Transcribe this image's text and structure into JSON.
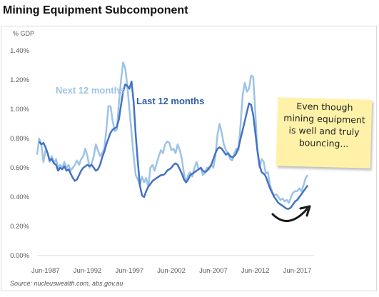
{
  "title": "Mining Equipment Subcomponent",
  "source": "Source: nucleuswealth.com, abs.gov.au",
  "note_lines": [
    "Even though",
    "mining equipment",
    "is well and truly",
    "bouncing..."
  ],
  "colors": {
    "next": "#9dc3e6",
    "last": "#4472c4",
    "last_label": "#2e5fa8",
    "arrow": "#1a1a1a"
  },
  "chart_data": {
    "type": "line",
    "title": "",
    "unit_label": "% GDP",
    "ylim": [
      0,
      1.4
    ],
    "y_ticks": [
      0.0,
      0.2,
      0.4,
      0.6,
      0.8,
      1.0,
      1.2,
      1.4
    ],
    "y_tick_labels": [
      "0.00%",
      "0.20%",
      "0.40%",
      "0.60%",
      "0.80%",
      "1.00%",
      "1.20%",
      "1.40%"
    ],
    "xlim": [
      1986.5,
      2019.5
    ],
    "x_ticks": [
      1987.5,
      1992.5,
      1997.5,
      2002.5,
      2007.5,
      2012.5,
      2017.5
    ],
    "x_tick_labels": [
      "Jun-1987",
      "Jun-1992",
      "Jun-1997",
      "Jun-2002",
      "Jun-2007",
      "Jun-2012",
      "Jun-2017"
    ],
    "grid": false,
    "series": [
      {
        "name": "Next 12 months",
        "points": [
          [
            1986.5,
            0.69
          ],
          [
            1986.75,
            0.8
          ],
          [
            1987,
            0.76
          ],
          [
            1987.25,
            0.64
          ],
          [
            1987.5,
            0.72
          ],
          [
            1987.75,
            0.7
          ],
          [
            1988,
            0.64
          ],
          [
            1988.25,
            0.68
          ],
          [
            1988.5,
            0.63
          ],
          [
            1988.75,
            0.66
          ],
          [
            1989,
            0.6
          ],
          [
            1989.25,
            0.62
          ],
          [
            1989.5,
            0.6
          ],
          [
            1989.75,
            0.64
          ],
          [
            1990,
            0.6
          ],
          [
            1990.25,
            0.62
          ],
          [
            1990.5,
            0.58
          ],
          [
            1990.75,
            0.6
          ],
          [
            1991,
            0.62
          ],
          [
            1991.25,
            0.65
          ],
          [
            1991.5,
            0.62
          ],
          [
            1991.75,
            0.66
          ],
          [
            1992,
            0.68
          ],
          [
            1992.25,
            0.73
          ],
          [
            1992.5,
            0.68
          ],
          [
            1992.75,
            0.6
          ],
          [
            1993,
            0.63
          ],
          [
            1993.25,
            0.68
          ],
          [
            1993.5,
            0.76
          ],
          [
            1993.75,
            0.72
          ],
          [
            1994,
            0.68
          ],
          [
            1994.25,
            0.7
          ],
          [
            1994.5,
            0.73
          ],
          [
            1994.75,
            0.86
          ],
          [
            1995,
            1.02
          ],
          [
            1995.25,
            1.02
          ],
          [
            1995.5,
            0.92
          ],
          [
            1995.75,
            0.85
          ],
          [
            1996,
            0.86
          ],
          [
            1996.25,
            1.04
          ],
          [
            1996.5,
            1.2
          ],
          [
            1996.75,
            1.32
          ],
          [
            1997,
            1.28
          ],
          [
            1997.25,
            1.16
          ],
          [
            1997.5,
            1.0
          ],
          [
            1997.75,
            0.84
          ],
          [
            1998,
            0.68
          ],
          [
            1998.25,
            0.55
          ],
          [
            1998.5,
            0.52
          ],
          [
            1998.75,
            0.48
          ],
          [
            1999,
            0.54
          ],
          [
            1999.25,
            0.5
          ],
          [
            1999.5,
            0.53
          ],
          [
            1999.75,
            0.47
          ],
          [
            2000,
            0.6
          ],
          [
            2000.25,
            0.62
          ],
          [
            2000.5,
            0.58
          ],
          [
            2000.75,
            0.63
          ],
          [
            2001,
            0.68
          ],
          [
            2001.25,
            0.72
          ],
          [
            2001.5,
            0.7
          ],
          [
            2001.75,
            0.76
          ],
          [
            2002,
            0.78
          ],
          [
            2002.25,
            0.77
          ],
          [
            2002.5,
            0.72
          ],
          [
            2002.75,
            0.73
          ],
          [
            2003,
            0.7
          ],
          [
            2003.25,
            0.76
          ],
          [
            2003.5,
            0.72
          ],
          [
            2003.75,
            0.66
          ],
          [
            2004,
            0.56
          ],
          [
            2004.25,
            0.5
          ],
          [
            2004.5,
            0.55
          ],
          [
            2004.75,
            0.57
          ],
          [
            2005,
            0.54
          ],
          [
            2005.25,
            0.6
          ],
          [
            2005.5,
            0.64
          ],
          [
            2005.75,
            0.59
          ],
          [
            2006,
            0.6
          ],
          [
            2006.25,
            0.55
          ],
          [
            2006.5,
            0.57
          ],
          [
            2006.75,
            0.6
          ],
          [
            2007,
            0.59
          ],
          [
            2007.25,
            0.62
          ],
          [
            2007.5,
            0.6
          ],
          [
            2007.75,
            0.68
          ],
          [
            2008,
            0.83
          ],
          [
            2008.25,
            0.9
          ],
          [
            2008.5,
            0.84
          ],
          [
            2008.75,
            0.76
          ],
          [
            2009,
            0.72
          ],
          [
            2009.25,
            0.7
          ],
          [
            2009.5,
            0.66
          ],
          [
            2009.75,
            0.65
          ],
          [
            2010,
            0.7
          ],
          [
            2010.25,
            0.73
          ],
          [
            2010.5,
            0.72
          ],
          [
            2010.75,
            0.9
          ],
          [
            2011,
            1.1
          ],
          [
            2011.25,
            1.18
          ],
          [
            2011.5,
            1.12
          ],
          [
            2011.75,
            1.14
          ],
          [
            2012,
            1.23
          ],
          [
            2012.25,
            1.22
          ],
          [
            2012.5,
            0.98
          ],
          [
            2012.75,
            0.72
          ],
          [
            2013,
            0.6
          ],
          [
            2013.25,
            0.66
          ],
          [
            2013.5,
            0.64
          ],
          [
            2013.75,
            0.56
          ],
          [
            2014,
            0.57
          ],
          [
            2014.25,
            0.48
          ],
          [
            2014.5,
            0.44
          ],
          [
            2014.75,
            0.41
          ],
          [
            2015,
            0.42
          ],
          [
            2015.25,
            0.4
          ],
          [
            2015.5,
            0.38
          ],
          [
            2015.75,
            0.39
          ],
          [
            2016,
            0.37
          ],
          [
            2016.25,
            0.38
          ],
          [
            2016.5,
            0.36
          ],
          [
            2016.75,
            0.4
          ],
          [
            2017,
            0.43
          ],
          [
            2017.25,
            0.44
          ],
          [
            2017.5,
            0.44
          ],
          [
            2017.75,
            0.46
          ],
          [
            2018,
            0.44
          ],
          [
            2018.25,
            0.48
          ],
          [
            2018.5,
            0.53
          ],
          [
            2018.75,
            0.55
          ]
        ]
      },
      {
        "name": "Last 12 months",
        "points": [
          [
            1986.75,
            0.78
          ],
          [
            1987,
            0.76
          ],
          [
            1987.25,
            0.77
          ],
          [
            1987.5,
            0.74
          ],
          [
            1987.75,
            0.7
          ],
          [
            1988,
            0.65
          ],
          [
            1988.25,
            0.66
          ],
          [
            1988.5,
            0.63
          ],
          [
            1988.75,
            0.62
          ],
          [
            1989,
            0.58
          ],
          [
            1989.25,
            0.6
          ],
          [
            1989.5,
            0.59
          ],
          [
            1989.75,
            0.61
          ],
          [
            1990,
            0.58
          ],
          [
            1990.25,
            0.59
          ],
          [
            1990.5,
            0.56
          ],
          [
            1990.75,
            0.53
          ],
          [
            1991,
            0.51
          ],
          [
            1991.25,
            0.52
          ],
          [
            1991.5,
            0.55
          ],
          [
            1991.75,
            0.58
          ],
          [
            1992,
            0.6
          ],
          [
            1992.25,
            0.61
          ],
          [
            1992.5,
            0.62
          ],
          [
            1992.75,
            0.61
          ],
          [
            1993,
            0.62
          ],
          [
            1993.25,
            0.6
          ],
          [
            1993.5,
            0.58
          ],
          [
            1993.75,
            0.59
          ],
          [
            1994,
            0.62
          ],
          [
            1994.25,
            0.67
          ],
          [
            1994.5,
            0.71
          ],
          [
            1994.75,
            0.76
          ],
          [
            1995,
            0.8
          ],
          [
            1995.25,
            0.84
          ],
          [
            1995.5,
            0.86
          ],
          [
            1995.75,
            0.87
          ],
          [
            1996,
            0.88
          ],
          [
            1996.25,
            0.93
          ],
          [
            1996.5,
            1.03
          ],
          [
            1996.75,
            1.12
          ],
          [
            1997,
            1.17
          ],
          [
            1997.25,
            1.16
          ],
          [
            1997.5,
            1.14
          ],
          [
            1997.75,
            1.19
          ],
          [
            1998,
            1.05
          ],
          [
            1998.25,
            0.82
          ],
          [
            1998.5,
            0.64
          ],
          [
            1998.75,
            0.48
          ],
          [
            1999,
            0.41
          ],
          [
            1999.25,
            0.4
          ],
          [
            1999.5,
            0.44
          ],
          [
            1999.75,
            0.47
          ],
          [
            2000,
            0.49
          ],
          [
            2000.25,
            0.51
          ],
          [
            2000.5,
            0.52
          ],
          [
            2000.75,
            0.53
          ],
          [
            2001,
            0.54
          ],
          [
            2001.25,
            0.55
          ],
          [
            2001.5,
            0.55
          ],
          [
            2001.75,
            0.56
          ],
          [
            2002,
            0.58
          ],
          [
            2002.25,
            0.59
          ],
          [
            2002.5,
            0.6
          ],
          [
            2002.75,
            0.62
          ],
          [
            2003,
            0.63
          ],
          [
            2003.25,
            0.62
          ],
          [
            2003.5,
            0.59
          ],
          [
            2003.75,
            0.56
          ],
          [
            2004,
            0.52
          ],
          [
            2004.25,
            0.5
          ],
          [
            2004.5,
            0.52
          ],
          [
            2004.75,
            0.55
          ],
          [
            2005,
            0.56
          ],
          [
            2005.25,
            0.57
          ],
          [
            2005.5,
            0.58
          ],
          [
            2005.75,
            0.59
          ],
          [
            2006,
            0.6
          ],
          [
            2006.25,
            0.58
          ],
          [
            2006.5,
            0.57
          ],
          [
            2006.75,
            0.58
          ],
          [
            2007,
            0.6
          ],
          [
            2007.25,
            0.62
          ],
          [
            2007.5,
            0.66
          ],
          [
            2007.75,
            0.7
          ],
          [
            2008,
            0.73
          ],
          [
            2008.25,
            0.74
          ],
          [
            2008.5,
            0.73
          ],
          [
            2008.75,
            0.71
          ],
          [
            2009,
            0.69
          ],
          [
            2009.25,
            0.7
          ],
          [
            2009.5,
            0.68
          ],
          [
            2009.75,
            0.67
          ],
          [
            2010,
            0.68
          ],
          [
            2010.25,
            0.7
          ],
          [
            2010.5,
            0.74
          ],
          [
            2010.75,
            0.8
          ],
          [
            2011,
            0.86
          ],
          [
            2011.25,
            0.92
          ],
          [
            2011.5,
            0.98
          ],
          [
            2011.75,
            1.04
          ],
          [
            2012,
            1.03
          ],
          [
            2012.25,
            0.96
          ],
          [
            2012.5,
            0.84
          ],
          [
            2012.75,
            0.72
          ],
          [
            2013,
            0.62
          ],
          [
            2013.25,
            0.57
          ],
          [
            2013.5,
            0.56
          ],
          [
            2013.75,
            0.54
          ],
          [
            2014,
            0.5
          ],
          [
            2014.25,
            0.46
          ],
          [
            2014.5,
            0.43
          ],
          [
            2014.75,
            0.4
          ],
          [
            2015,
            0.38
          ],
          [
            2015.25,
            0.36
          ],
          [
            2015.5,
            0.35
          ],
          [
            2015.75,
            0.34
          ],
          [
            2016,
            0.33
          ],
          [
            2016.25,
            0.32
          ],
          [
            2016.5,
            0.32
          ],
          [
            2016.75,
            0.33
          ],
          [
            2017,
            0.35
          ],
          [
            2017.25,
            0.37
          ],
          [
            2017.5,
            0.38
          ],
          [
            2017.75,
            0.4
          ],
          [
            2018,
            0.42
          ],
          [
            2018.25,
            0.44
          ],
          [
            2018.5,
            0.46
          ],
          [
            2018.75,
            0.48
          ]
        ]
      }
    ]
  }
}
